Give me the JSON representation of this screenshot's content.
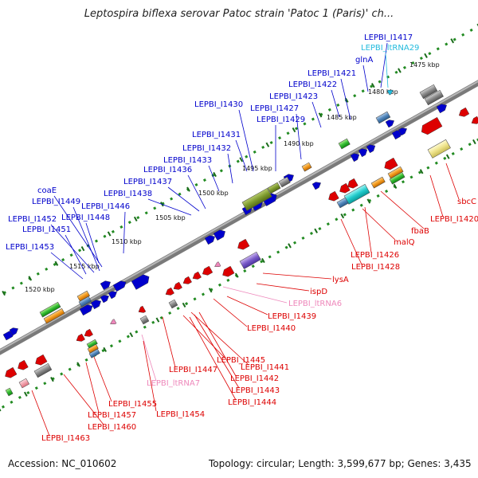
{
  "title": "Leptospira biflexa serovar Patoc strain 'Patoc 1 (Paris)' ch...",
  "footer": {
    "accession": "Accession: NC_010602",
    "summary": "Topology: circular; Length: 3,599,677 bp; Genes: 3,435"
  },
  "colors": {
    "forward_gene": "#0000cc",
    "reverse_gene": "#dd0000",
    "trna": "#ee88bb",
    "ncrna": "#22bbdd",
    "backbone": "#777777",
    "tick": "#228b22"
  },
  "kbp_ticks": [
    {
      "text": "1475 kbp"
    },
    {
      "text": "1480 kbp"
    },
    {
      "text": "1485 kbp"
    },
    {
      "text": "1490 kbp"
    },
    {
      "text": "1495 kbp"
    },
    {
      "text": "1500 kbp"
    },
    {
      "text": "1505 kbp"
    },
    {
      "text": "1510 kbp"
    },
    {
      "text": "1515 kbp"
    },
    {
      "text": "1520 kbp"
    }
  ],
  "forward_labels": [
    {
      "text": "LEPBI_I1417"
    },
    {
      "text": "LEPBI_ltRNA29"
    },
    {
      "text": "glnA"
    },
    {
      "text": "LEPBI_I1421"
    },
    {
      "text": "LEPBI_I1422"
    },
    {
      "text": "LEPBI_I1423"
    },
    {
      "text": "LEPBI_I1430"
    },
    {
      "text": "LEPBI_I1427"
    },
    {
      "text": "LEPBI_I1429"
    },
    {
      "text": "LEPBI_I1431"
    },
    {
      "text": "LEPBI_I1432"
    },
    {
      "text": "LEPBI_I1433"
    },
    {
      "text": "LEPBI_I1436"
    },
    {
      "text": "LEPBI_I1437"
    },
    {
      "text": "LEPBI_I1438"
    },
    {
      "text": "coaE"
    },
    {
      "text": "LEPBI_I1446"
    },
    {
      "text": "LEPBI_I1449"
    },
    {
      "text": "LEPBI_I1448"
    },
    {
      "text": "LEPBI_I1452"
    },
    {
      "text": "LEPBI_I1451"
    },
    {
      "text": "LEPBI_I1453"
    }
  ],
  "reverse_labels": [
    {
      "text": "sbcC"
    },
    {
      "text": "LEPBI_I1420"
    },
    {
      "text": "fbaB"
    },
    {
      "text": "malQ"
    },
    {
      "text": "LEPBI_I1426"
    },
    {
      "text": "LEPBI_I1428"
    },
    {
      "text": "lysA"
    },
    {
      "text": "ispD"
    },
    {
      "text": "LEPBI_ltRNA6"
    },
    {
      "text": "LEPBI_I1439"
    },
    {
      "text": "LEPBI_I1440"
    },
    {
      "text": "LEPBI_I1445"
    },
    {
      "text": "LEPBI_I1441"
    },
    {
      "text": "LEPBI_I1447"
    },
    {
      "text": "LEPBI_I1442"
    },
    {
      "text": "LEPBI_I1443"
    },
    {
      "text": "LEPBI_ltRNA7"
    },
    {
      "text": "LEPBI_I1444"
    },
    {
      "text": "LEPBI_I1455"
    },
    {
      "text": "LEPBI_I1454"
    },
    {
      "text": "LEPBI_I1457"
    },
    {
      "text": "LEPBI_I1460"
    },
    {
      "text": "LEPBI_I1463"
    }
  ]
}
